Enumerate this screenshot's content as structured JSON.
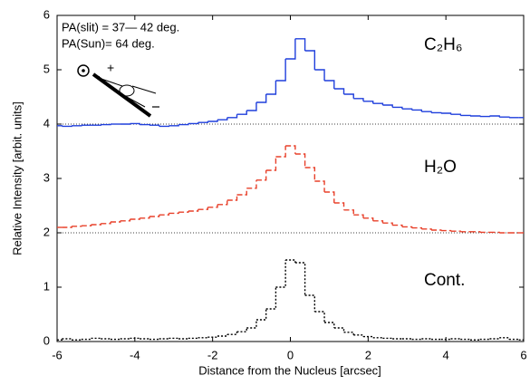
{
  "chart_data": {
    "type": "step",
    "annotations": [
      "PA(slit)  = 37— 42 deg.",
      "PA(Sun)= 64 deg."
    ],
    "xlabel": "Distance from the Nucleus [arcsec]",
    "ylabel": "Relative Intensity [arbit. units]",
    "xlim": [
      -6,
      6
    ],
    "ylim": [
      0,
      6
    ],
    "xticks": [
      -6,
      -4,
      -2,
      0,
      2,
      4,
      6
    ],
    "yticks": [
      0,
      1,
      2,
      3,
      4,
      5,
      6
    ],
    "baselines": [
      4,
      2,
      0
    ],
    "x": [
      -6,
      -5.75,
      -5.5,
      -5.25,
      -5,
      -4.75,
      -4.5,
      -4.25,
      -4,
      -3.75,
      -3.5,
      -3.25,
      -3,
      -2.75,
      -2.5,
      -2.25,
      -2,
      -1.75,
      -1.5,
      -1.25,
      -1,
      -0.75,
      -0.5,
      -0.25,
      0,
      0.25,
      0.5,
      0.75,
      1,
      1.25,
      1.5,
      1.75,
      2,
      2.25,
      2.5,
      2.75,
      3,
      3.25,
      3.5,
      3.75,
      4,
      4.25,
      4.5,
      4.75,
      5,
      5.25,
      5.5,
      5.75,
      6
    ],
    "series": [
      {
        "name": "C₂H₆",
        "color": "#1f3fdc",
        "linestyle": "solid",
        "values": [
          3.97,
          3.96,
          3.97,
          3.98,
          3.98,
          3.99,
          4.0,
          4.0,
          4.01,
          3.99,
          3.98,
          3.96,
          3.97,
          3.99,
          4.01,
          4.03,
          4.05,
          4.08,
          4.12,
          4.18,
          4.25,
          4.4,
          4.55,
          4.8,
          5.2,
          5.57,
          5.35,
          5.0,
          4.8,
          4.65,
          4.55,
          4.47,
          4.42,
          4.38,
          4.35,
          4.31,
          4.28,
          4.26,
          4.23,
          4.21,
          4.2,
          4.18,
          4.16,
          4.15,
          4.14,
          4.15,
          4.13,
          4.12,
          4.12
        ]
      },
      {
        "name": "H₂O",
        "color": "#e8402a",
        "linestyle": "dashed",
        "values": [
          2.1,
          2.1,
          2.12,
          2.13,
          2.15,
          2.17,
          2.2,
          2.22,
          2.25,
          2.27,
          2.3,
          2.33,
          2.36,
          2.38,
          2.4,
          2.43,
          2.47,
          2.52,
          2.6,
          2.7,
          2.82,
          2.97,
          3.15,
          3.4,
          3.6,
          3.45,
          3.2,
          2.95,
          2.75,
          2.55,
          2.42,
          2.33,
          2.27,
          2.22,
          2.18,
          2.14,
          2.11,
          2.09,
          2.07,
          2.05,
          2.04,
          2.03,
          2.02,
          2.02,
          2.01,
          2.01,
          2.0,
          2.0,
          2.0
        ]
      },
      {
        "name": "Cont.",
        "color": "#000000",
        "linestyle": "dotted",
        "values": [
          0.03,
          0.05,
          0.03,
          0.04,
          0.06,
          0.05,
          0.04,
          0.05,
          0.06,
          0.05,
          0.04,
          0.05,
          0.06,
          0.05,
          0.06,
          0.07,
          0.08,
          0.1,
          0.13,
          0.18,
          0.25,
          0.4,
          0.6,
          1.0,
          1.5,
          1.45,
          0.85,
          0.55,
          0.35,
          0.25,
          0.17,
          0.12,
          0.09,
          0.07,
          0.06,
          0.05,
          0.05,
          0.04,
          0.05,
          0.04,
          0.04,
          0.05,
          0.04,
          0.03,
          0.04,
          0.05,
          0.07,
          0.04,
          0.03
        ]
      }
    ]
  }
}
